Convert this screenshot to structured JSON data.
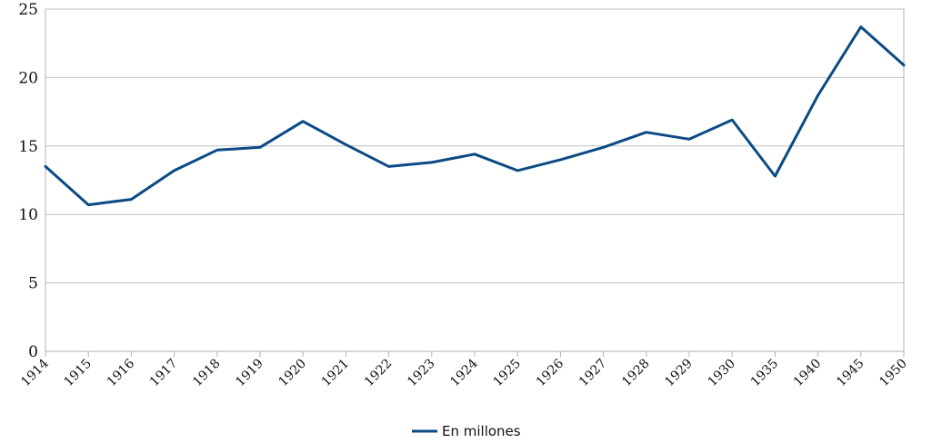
{
  "chart_data": {
    "type": "line",
    "categories": [
      "1914",
      "1915",
      "1916",
      "1917",
      "1918",
      "1919",
      "1920",
      "1921",
      "1922",
      "1923",
      "1924",
      "1925",
      "1926",
      "1927",
      "1928",
      "1929",
      "1930",
      "1935",
      "1940",
      "1945",
      "1950"
    ],
    "series": [
      {
        "name": "En millones",
        "color": "#0b4a84",
        "values": [
          13.5,
          10.7,
          11.1,
          13.2,
          14.7,
          14.9,
          16.8,
          15.1,
          13.5,
          13.8,
          14.4,
          13.2,
          14.0,
          14.9,
          16.0,
          15.5,
          16.9,
          12.8,
          18.7,
          23.7,
          20.9
        ]
      }
    ],
    "yticks": [
      "0",
      "5",
      "10",
      "15",
      "20",
      "25"
    ],
    "ylim": [
      0,
      25
    ],
    "grid": true,
    "legend_position": "bottom"
  }
}
